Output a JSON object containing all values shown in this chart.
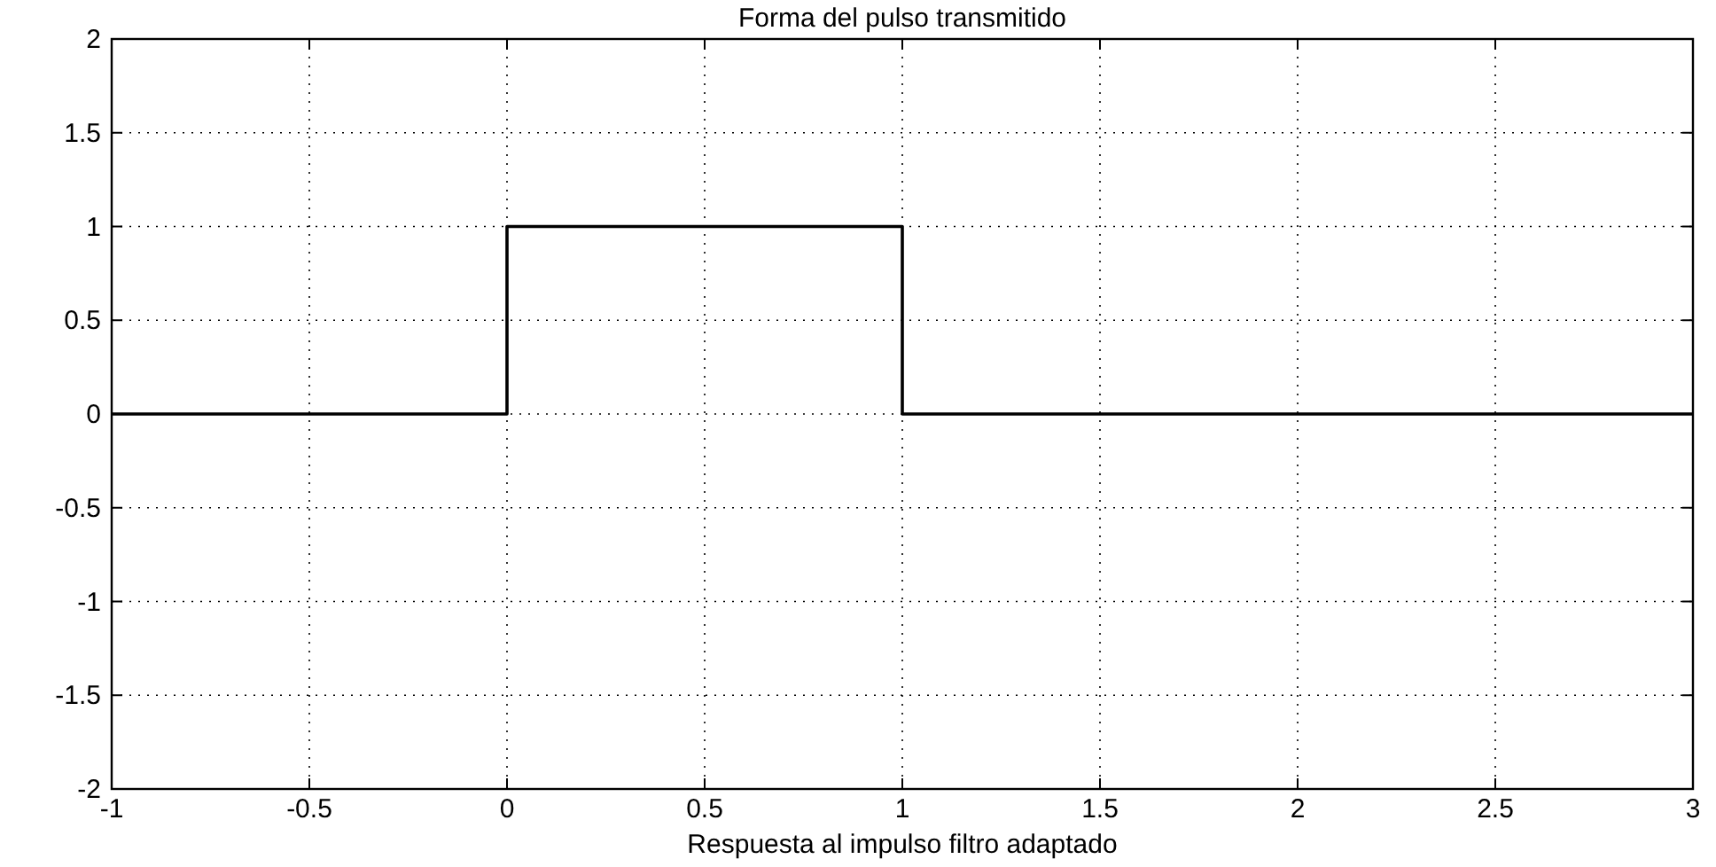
{
  "chart_data": {
    "type": "line",
    "title": "Forma del pulso transmitido",
    "xlabel": "Respuesta al impulso filtro adaptado",
    "x": [
      -1,
      0,
      0,
      1,
      1,
      3
    ],
    "series": [
      {
        "color": "#000000",
        "values": [
          0,
          0,
          1,
          1,
          0,
          0
        ]
      }
    ],
    "xlim": [
      -1,
      3
    ],
    "xticks": [
      -1,
      -0.5,
      0,
      0.5,
      1,
      1.5,
      2,
      2.5,
      3
    ],
    "ylim": [
      -2,
      2
    ],
    "yticks": [
      -2,
      -1.5,
      -1,
      -0.5,
      0,
      0.5,
      1,
      1.5,
      2
    ],
    "grid": true,
    "marker": "none",
    "line_style": "solid"
  }
}
